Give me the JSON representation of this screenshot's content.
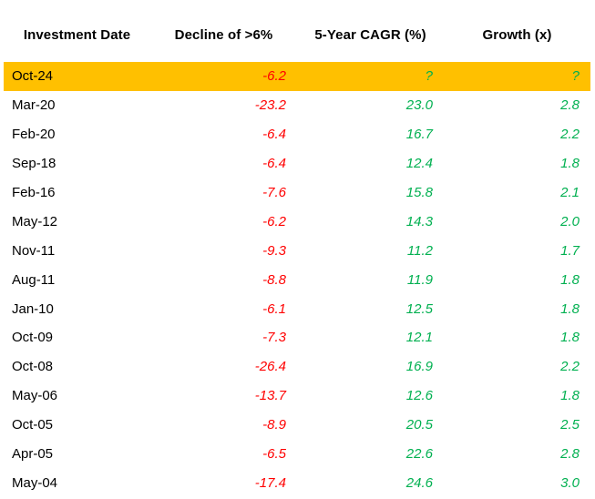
{
  "table": {
    "columns": [
      "Investment Date",
      "Decline of >6%",
      "5-Year CAGR (%)",
      "Growth (x)"
    ],
    "colors": {
      "highlight": "#FFC000",
      "negative": "#FF0000",
      "positive": "#00B050"
    },
    "rows": [
      {
        "date": "Oct-24",
        "decline": "-6.2",
        "cagr": "?",
        "growth": "?"
      },
      {
        "date": "Mar-20",
        "decline": "-23.2",
        "cagr": "23.0",
        "growth": "2.8"
      },
      {
        "date": "Feb-20",
        "decline": "-6.4",
        "cagr": "16.7",
        "growth": "2.2"
      },
      {
        "date": "Sep-18",
        "decline": "-6.4",
        "cagr": "12.4",
        "growth": "1.8"
      },
      {
        "date": "Feb-16",
        "decline": "-7.6",
        "cagr": "15.8",
        "growth": "2.1"
      },
      {
        "date": "May-12",
        "decline": "-6.2",
        "cagr": "14.3",
        "growth": "2.0"
      },
      {
        "date": "Nov-11",
        "decline": "-9.3",
        "cagr": "11.2",
        "growth": "1.7"
      },
      {
        "date": "Aug-11",
        "decline": "-8.8",
        "cagr": "11.9",
        "growth": "1.8"
      },
      {
        "date": "Jan-10",
        "decline": "-6.1",
        "cagr": "12.5",
        "growth": "1.8"
      },
      {
        "date": "Oct-09",
        "decline": "-7.3",
        "cagr": "12.1",
        "growth": "1.8"
      },
      {
        "date": "Oct-08",
        "decline": "-26.4",
        "cagr": "16.9",
        "growth": "2.2"
      },
      {
        "date": "May-06",
        "decline": "-13.7",
        "cagr": "12.6",
        "growth": "1.8"
      },
      {
        "date": "Oct-05",
        "decline": "-8.9",
        "cagr": "20.5",
        "growth": "2.5"
      },
      {
        "date": "Apr-05",
        "decline": "-6.5",
        "cagr": "22.6",
        "growth": "2.8"
      },
      {
        "date": "May-04",
        "decline": "-17.4",
        "cagr": "24.6",
        "growth": "3.0"
      }
    ]
  },
  "chart_data": {
    "type": "table",
    "columns": [
      "Investment Date",
      "Decline of >6%",
      "5-Year CAGR (%)",
      "Growth (x)"
    ],
    "rows": [
      [
        "Oct-24",
        -6.2,
        "?",
        "?"
      ],
      [
        "Mar-20",
        -23.2,
        23.0,
        2.8
      ],
      [
        "Feb-20",
        -6.4,
        16.7,
        2.2
      ],
      [
        "Sep-18",
        -6.4,
        12.4,
        1.8
      ],
      [
        "Feb-16",
        -7.6,
        15.8,
        2.1
      ],
      [
        "May-12",
        -6.2,
        14.3,
        2.0
      ],
      [
        "Nov-11",
        -9.3,
        11.2,
        1.7
      ],
      [
        "Aug-11",
        -8.8,
        11.9,
        1.8
      ],
      [
        "Jan-10",
        -6.1,
        12.5,
        1.8
      ],
      [
        "Oct-09",
        -7.3,
        12.1,
        1.8
      ],
      [
        "Oct-08",
        -26.4,
        16.9,
        2.2
      ],
      [
        "May-06",
        -13.7,
        12.6,
        1.8
      ],
      [
        "Oct-05",
        -8.9,
        20.5,
        2.5
      ],
      [
        "Apr-05",
        -6.5,
        22.6,
        2.8
      ],
      [
        "May-04",
        -17.4,
        24.6,
        3.0
      ]
    ],
    "highlighted_row": "Oct-24"
  }
}
